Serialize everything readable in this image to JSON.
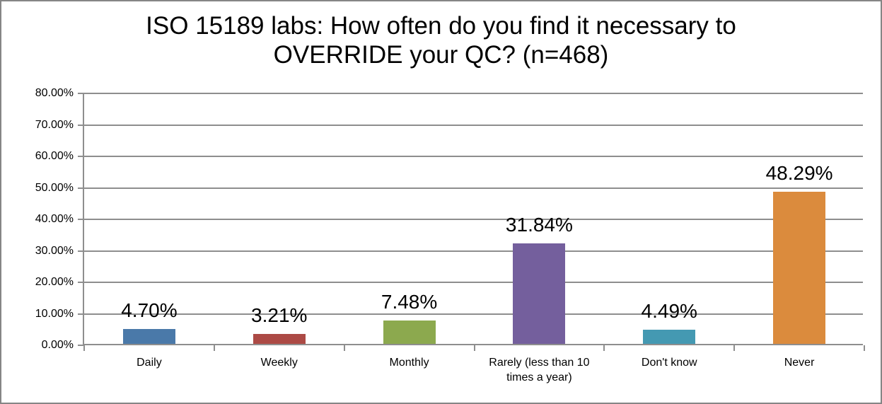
{
  "title_lines": "ISO 15189 labs: How often do you find it necessary to\nOVERRIDE your QC? (n=468)",
  "chart_data": {
    "type": "bar",
    "title": "ISO 15189 labs: How often do you find it necessary to OVERRIDE your QC? (n=468)",
    "n": 468,
    "categories": [
      "Daily",
      "Weekly",
      "Monthly",
      "Rarely (less than 10 times a year)",
      "Don't know",
      "Never"
    ],
    "values": [
      4.7,
      3.21,
      7.48,
      31.84,
      4.49,
      48.29
    ],
    "data_labels": [
      "4.70%",
      "3.21%",
      "7.48%",
      "31.84%",
      "4.49%",
      "48.29%"
    ],
    "bar_colors": [
      "#4a79a9",
      "#ac4a45",
      "#8ca94e",
      "#745f9d",
      "#4499b2",
      "#db8b3d"
    ],
    "xlabel": "",
    "ylabel": "",
    "ylim": [
      0,
      80
    ],
    "ytick_step": 10,
    "ytick_labels": [
      "0.00%",
      "10.00%",
      "20.00%",
      "30.00%",
      "40.00%",
      "50.00%",
      "60.00%",
      "70.00%",
      "80.00%"
    ],
    "grid": true,
    "legend": false
  },
  "colors": {
    "gridline": "#8e8e8e",
    "axis": "#8e8e8e",
    "frame_border": "#858585",
    "text": "#000000",
    "background": "#ffffff"
  }
}
